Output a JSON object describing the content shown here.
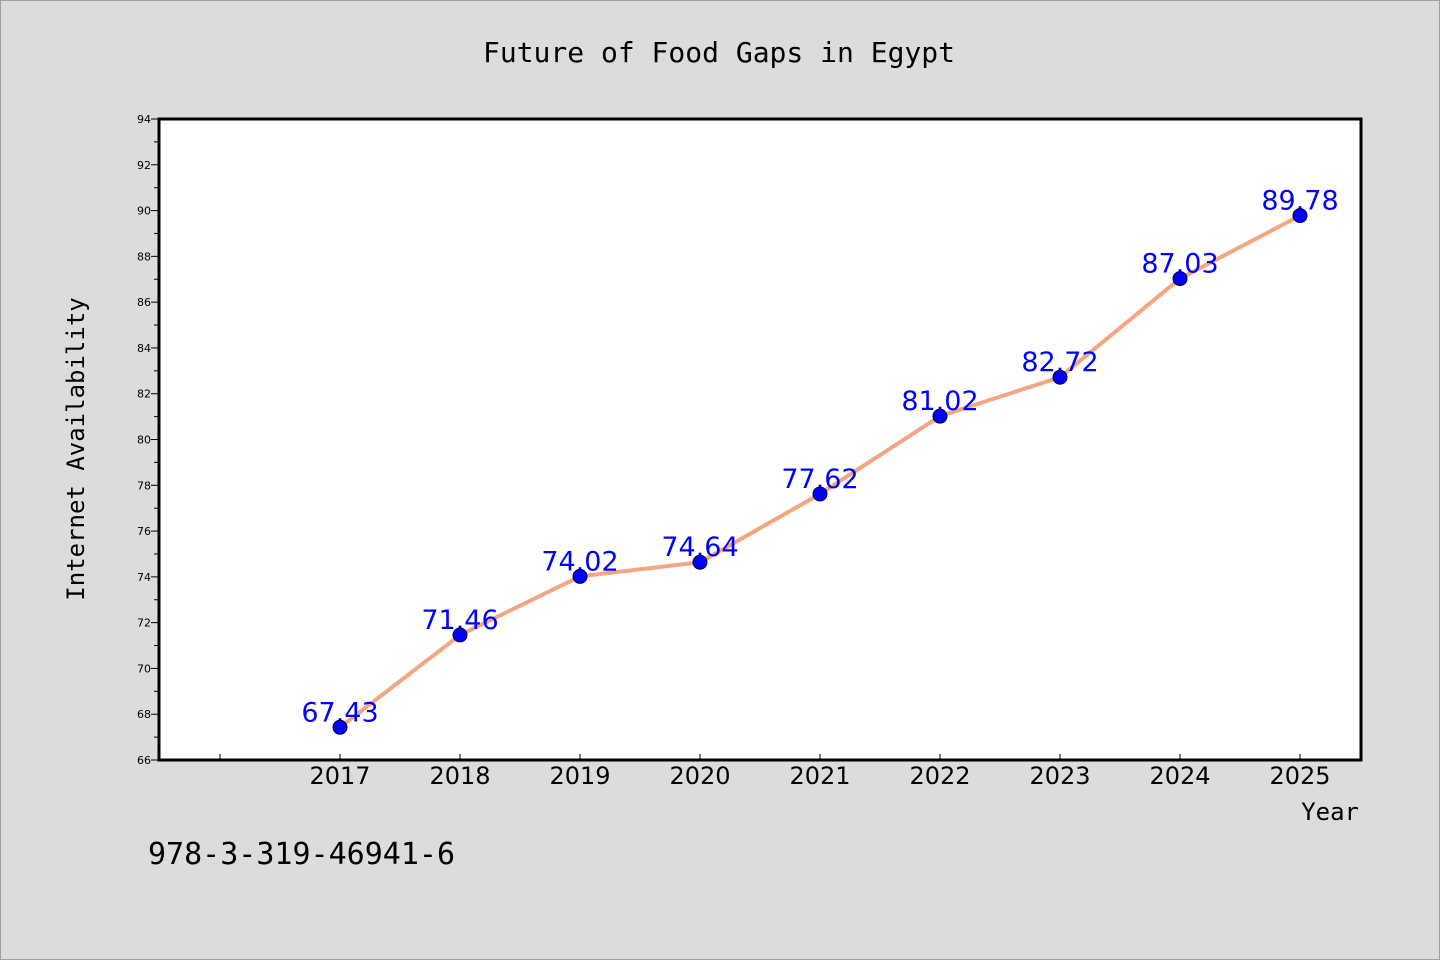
{
  "footer_id": "978-3-319-46941-6",
  "chart_data": {
    "type": "line",
    "title": "Future of Food Gaps in Egypt",
    "xlabel": "Year",
    "ylabel": "Internet Availability",
    "x": [
      "2017",
      "2018",
      "2019",
      "2020",
      "2021",
      "2022",
      "2023",
      "2024",
      "2025"
    ],
    "series": [
      {
        "values": [
          67.43,
          71.46,
          74.02,
          74.64,
          77.62,
          81.02,
          82.72,
          87.03,
          89.78
        ],
        "labels": [
          "67.43",
          "71.46",
          "74.02",
          "74.64",
          "77.62",
          "81.02",
          "82.72",
          "87.03",
          "89.78"
        ]
      }
    ],
    "ylim": [
      66,
      94
    ],
    "yticks": [
      "66",
      "68",
      "70",
      "72",
      "74",
      "76",
      "78",
      "80",
      "82",
      "84",
      "86",
      "88",
      "90",
      "92",
      "94"
    ],
    "grid": false,
    "colors": {
      "line": "#f4a582",
      "marker": "#0000ff",
      "data_label": "#0000ff",
      "background": "#dcdcdc",
      "plot_bg": "#ffffff"
    }
  }
}
